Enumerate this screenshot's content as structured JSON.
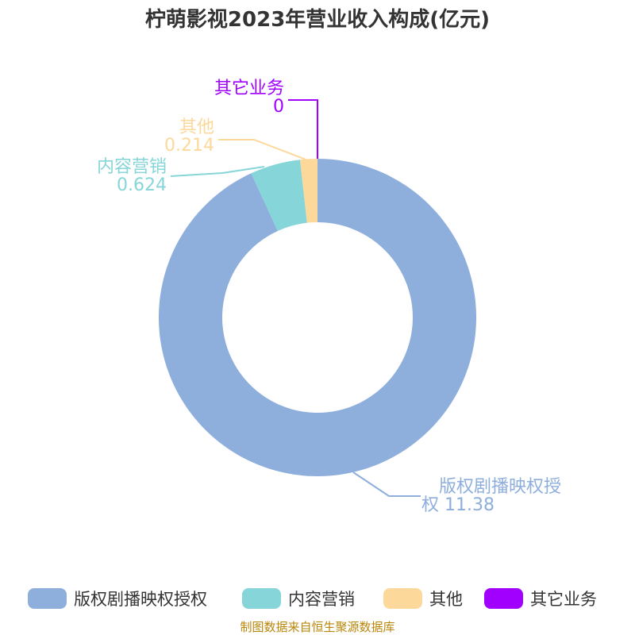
{
  "chart_data": {
    "type": "pie",
    "title": "柠萌影视2023年营业收入构成(亿元)",
    "series": [
      {
        "name": "版权剧播映权授权",
        "value": 11.38,
        "value_label": "11.38",
        "label_lines": [
          "版权剧播映权授",
          "权 11.38"
        ],
        "color": "#8eaedc"
      },
      {
        "name": "内容营销",
        "value": 0.624,
        "value_label": "0.624",
        "label_lines": [
          "内容营销",
          "0.624"
        ],
        "color": "#86d5d8"
      },
      {
        "name": "其他",
        "value": 0.214,
        "value_label": "0.214",
        "label_lines": [
          "其他",
          "0.214"
        ],
        "color": "#fdd89b"
      },
      {
        "name": "其它业务",
        "value": 0,
        "value_label": "0",
        "label_lines": [
          "其它业务",
          "0"
        ],
        "color": "#a100ff"
      }
    ],
    "legend_position": "bottom",
    "donut": true
  },
  "footer": {
    "source": "制图数据来自恒生聚源数据库"
  }
}
